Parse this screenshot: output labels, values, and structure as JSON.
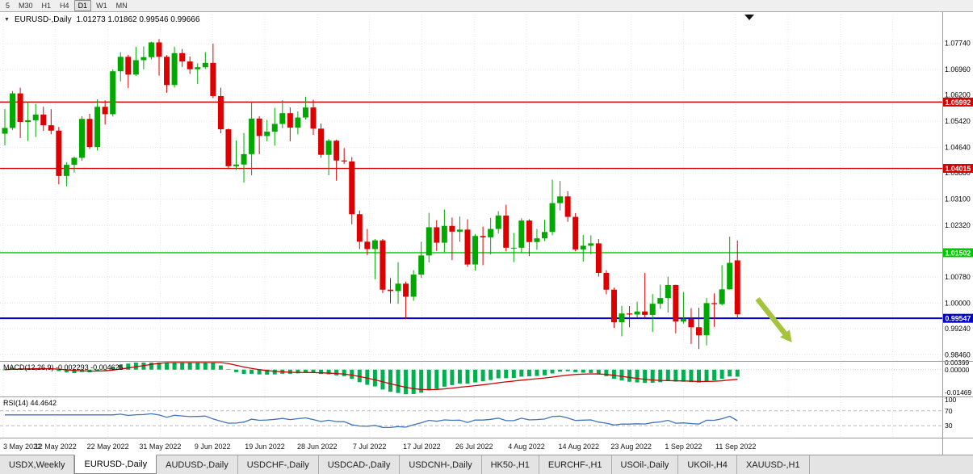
{
  "toolbar": {
    "timeframes": [
      {
        "label": "5"
      },
      {
        "label": "M30"
      },
      {
        "label": "H1"
      },
      {
        "label": "H4"
      },
      {
        "label": "D1",
        "active": true
      },
      {
        "label": "W1"
      },
      {
        "label": "MN"
      }
    ]
  },
  "header": {
    "symbol": "EURUSD-,Daily",
    "ohlc": "1.01273 1.01862 0.99546 0.99666"
  },
  "indicators": {
    "macd": {
      "name": "MACD(12,26,9)",
      "values": "-0.002293 -0.004625",
      "axis_labels": [
        "0.00399",
        "0.00000",
        "-0.01469"
      ],
      "bar_color": "#00B050",
      "signal_color": "#CC0000"
    },
    "rsi": {
      "name": "RSI(14)",
      "value": "44.4642",
      "axis_labels": [
        "100",
        "70",
        "30"
      ],
      "levels": [
        70,
        30
      ],
      "line_color": "#4073B7"
    }
  },
  "chart_data": {
    "type": "candlestick",
    "symbol": "EURUSD-",
    "timeframe": "Daily",
    "up_color": "#00A800",
    "down_color": "#DC0000",
    "price_axis_ticks": [
      1.0774,
      1.0696,
      1.062,
      1.0542,
      1.0464,
      1.0388,
      1.031,
      1.0232,
      1.0154,
      1.0078,
      1.0,
      0.9924,
      0.9846
    ],
    "price_range": {
      "min": 0.983,
      "max": 1.086
    },
    "levels": [
      {
        "price": 1.05992,
        "label": "1.05992",
        "color": "#D40000"
      },
      {
        "price": 1.04015,
        "label": "1.04015",
        "color": "#D40000"
      },
      {
        "price": 1.01502,
        "label": "1.01502",
        "color": "#00C800"
      },
      {
        "price": 0.99547,
        "label": "0.99547",
        "color": "#0000C8",
        "width": 2,
        "current": true
      }
    ],
    "date_labels": [
      "3 May 2022",
      "12 May 2022",
      "22 May 2022",
      "31 May 2022",
      "9 Jun 2022",
      "19 Jun 2022",
      "28 Jun 2022",
      "7 Jul 2022",
      "17 Jul 2022",
      "26 Jul 2022",
      "4 Aug 2022",
      "14 Aug 2022",
      "23 Aug 2022",
      "1 Sep 2022",
      "11 Sep 2022"
    ],
    "candles": [
      [
        1.0505,
        1.0578,
        1.047,
        1.0522
      ],
      [
        1.0522,
        1.0632,
        1.0516,
        1.0625
      ],
      [
        1.0625,
        1.0642,
        1.0492,
        1.054
      ],
      [
        1.054,
        1.0599,
        1.0483,
        1.0545
      ],
      [
        1.0545,
        1.0594,
        1.0495,
        1.0562
      ],
      [
        1.0562,
        1.0585,
        1.0513,
        1.053
      ],
      [
        1.053,
        1.0578,
        1.0503,
        1.0514
      ],
      [
        1.0514,
        1.0525,
        1.0354,
        1.0379
      ],
      [
        1.0379,
        1.042,
        1.0348,
        1.0412
      ],
      [
        1.0412,
        1.0437,
        1.0389,
        1.0433
      ],
      [
        1.0433,
        1.0557,
        1.0424,
        1.0549
      ],
      [
        1.0549,
        1.0564,
        1.0459,
        1.0465
      ],
      [
        1.0465,
        1.0607,
        1.0455,
        1.0585
      ],
      [
        1.0585,
        1.0604,
        1.0532,
        1.0563
      ],
      [
        1.0563,
        1.0697,
        1.0556,
        1.0691
      ],
      [
        1.0691,
        1.0748,
        1.0661,
        1.0734
      ],
      [
        1.0734,
        1.074,
        1.0641,
        1.0681
      ],
      [
        1.0681,
        1.0764,
        1.0677,
        1.0724
      ],
      [
        1.0724,
        1.0765,
        1.0697,
        1.0733
      ],
      [
        1.0733,
        1.0779,
        1.0726,
        1.0777
      ],
      [
        1.0777,
        1.0787,
        1.0678,
        1.0734
      ],
      [
        1.0734,
        1.0739,
        1.0627,
        1.065
      ],
      [
        1.065,
        1.0764,
        1.0642,
        1.0745
      ],
      [
        1.0745,
        1.0757,
        1.0704,
        1.072
      ],
      [
        1.072,
        1.0735,
        1.0683,
        1.0697
      ],
      [
        1.0697,
        1.0715,
        1.0653,
        1.0703
      ],
      [
        1.0703,
        1.0748,
        1.0698,
        1.0716
      ],
      [
        1.0716,
        1.0773,
        1.0611,
        1.0617
      ],
      [
        1.0617,
        1.0642,
        1.0506,
        1.0518
      ],
      [
        1.0518,
        1.052,
        1.0399,
        1.0408
      ],
      [
        1.0408,
        1.0485,
        1.0397,
        1.0413
      ],
      [
        1.0413,
        1.0507,
        1.0359,
        1.0444
      ],
      [
        1.0444,
        1.0601,
        1.0381,
        1.055
      ],
      [
        1.055,
        1.0557,
        1.0444,
        1.0498
      ],
      [
        1.0498,
        1.0546,
        1.0482,
        1.0511
      ],
      [
        1.0511,
        1.0582,
        1.0469,
        1.0534
      ],
      [
        1.0534,
        1.0605,
        1.0521,
        1.0566
      ],
      [
        1.0566,
        1.0583,
        1.0482,
        1.0523
      ],
      [
        1.0523,
        1.0571,
        1.0503,
        1.0553
      ],
      [
        1.0553,
        1.0615,
        1.0547,
        1.0583
      ],
      [
        1.0583,
        1.0606,
        1.0501,
        1.052
      ],
      [
        1.052,
        1.0535,
        1.0433,
        1.0442
      ],
      [
        1.0442,
        1.0489,
        1.0381,
        1.0484
      ],
      [
        1.0484,
        1.0487,
        1.0365,
        1.0425
      ],
      [
        1.0425,
        1.0462,
        1.0415,
        1.0422
      ],
      [
        1.0422,
        1.0435,
        1.0235,
        1.0265
      ],
      [
        1.0265,
        1.0276,
        1.0161,
        1.0183
      ],
      [
        1.0183,
        1.0221,
        1.0143,
        1.0161
      ],
      [
        1.0161,
        1.0191,
        1.0071,
        1.0187
      ],
      [
        1.0187,
        1.0191,
        1.003,
        1.004
      ],
      [
        1.004,
        1.0075,
        0.9999,
        1.0036
      ],
      [
        1.0036,
        1.0122,
        0.9998,
        1.0058
      ],
      [
        1.0058,
        1.0064,
        0.9952,
        1.0019
      ],
      [
        1.0019,
        1.0098,
        1.0007,
        1.0085
      ],
      [
        1.0085,
        1.0183,
        1.0075,
        1.0142
      ],
      [
        1.0142,
        1.0269,
        1.0121,
        1.0226
      ],
      [
        1.0226,
        1.0247,
        1.0155,
        1.018
      ],
      [
        1.018,
        1.0279,
        1.0152,
        1.023
      ],
      [
        1.023,
        1.0255,
        1.0128,
        1.0213
      ],
      [
        1.0213,
        1.0258,
        1.0183,
        1.0219
      ],
      [
        1.0219,
        1.025,
        1.0108,
        1.0115
      ],
      [
        1.0115,
        1.0206,
        1.0097,
        1.02
      ],
      [
        1.02,
        1.0228,
        1.0113,
        1.0196
      ],
      [
        1.0196,
        1.0254,
        1.0145,
        1.0221
      ],
      [
        1.0221,
        1.0274,
        1.0207,
        1.0261
      ],
      [
        1.0261,
        1.0293,
        1.0154,
        1.0165
      ],
      [
        1.0165,
        1.0209,
        1.0122,
        1.0165
      ],
      [
        1.0165,
        1.0253,
        1.0151,
        1.0246
      ],
      [
        1.0246,
        1.025,
        1.014,
        1.0182
      ],
      [
        1.0182,
        1.0221,
        1.0159,
        1.0193
      ],
      [
        1.0193,
        1.0248,
        1.0185,
        1.0212
      ],
      [
        1.0212,
        1.0368,
        1.0202,
        1.0298
      ],
      [
        1.0298,
        1.0364,
        1.0276,
        1.0318
      ],
      [
        1.0318,
        1.0333,
        1.0242,
        1.0257
      ],
      [
        1.0257,
        1.0268,
        1.0154,
        1.016
      ],
      [
        1.016,
        1.0203,
        1.0124,
        1.0171
      ],
      [
        1.0171,
        1.0202,
        1.0146,
        1.0178
      ],
      [
        1.0178,
        1.0191,
        1.0079,
        1.009
      ],
      [
        1.009,
        1.0098,
        1.0026,
        1.004
      ],
      [
        1.004,
        1.0046,
        0.9926,
        0.9943
      ],
      [
        0.9943,
        0.9992,
        0.9901,
        0.9969
      ],
      [
        0.9969,
        0.9991,
        0.9928,
        0.9966
      ],
      [
        0.9966,
        1.0004,
        0.9956,
        0.9975
      ],
      [
        0.9975,
        1.009,
        0.9957,
        0.9965
      ],
      [
        0.9965,
        1.0027,
        0.9914,
        0.9998
      ],
      [
        0.9998,
        1.0055,
        0.9983,
        1.0015
      ],
      [
        1.0015,
        1.0079,
        0.9972,
        1.0054
      ],
      [
        1.0054,
        1.0055,
        0.991,
        0.9945
      ],
      [
        0.9945,
        1.0033,
        0.9939,
        0.9953
      ],
      [
        0.9953,
        0.9985,
        0.9878,
        0.9928
      ],
      [
        0.9928,
        0.9986,
        0.9863,
        0.9904
      ],
      [
        0.9904,
        1.0015,
        0.9874,
        1.0
      ],
      [
        1.0,
        1.0029,
        0.9929,
        0.9997
      ],
      [
        0.9997,
        1.0113,
        0.9993,
        1.0041
      ],
      [
        1.0041,
        1.0198,
        1.004,
        1.012
      ],
      [
        1.01273,
        1.01862,
        0.99546,
        0.99666
      ]
    ]
  },
  "annotation_arrow": {
    "color": "#A6C33C"
  },
  "tabs": [
    {
      "label": "USDX,Weekly"
    },
    {
      "label": "EURUSD-,Daily",
      "active": true
    },
    {
      "label": "AUDUSD-,Daily"
    },
    {
      "label": "USDCHF-,Daily"
    },
    {
      "label": "USDCAD-,Daily"
    },
    {
      "label": "USDCNH-,Daily"
    },
    {
      "label": "HK50-,H1"
    },
    {
      "label": "EURCHF-,H1"
    },
    {
      "label": "USOil-,Daily"
    },
    {
      "label": "UKOil-,H4"
    },
    {
      "label": "XAUUSD-,H1"
    }
  ]
}
